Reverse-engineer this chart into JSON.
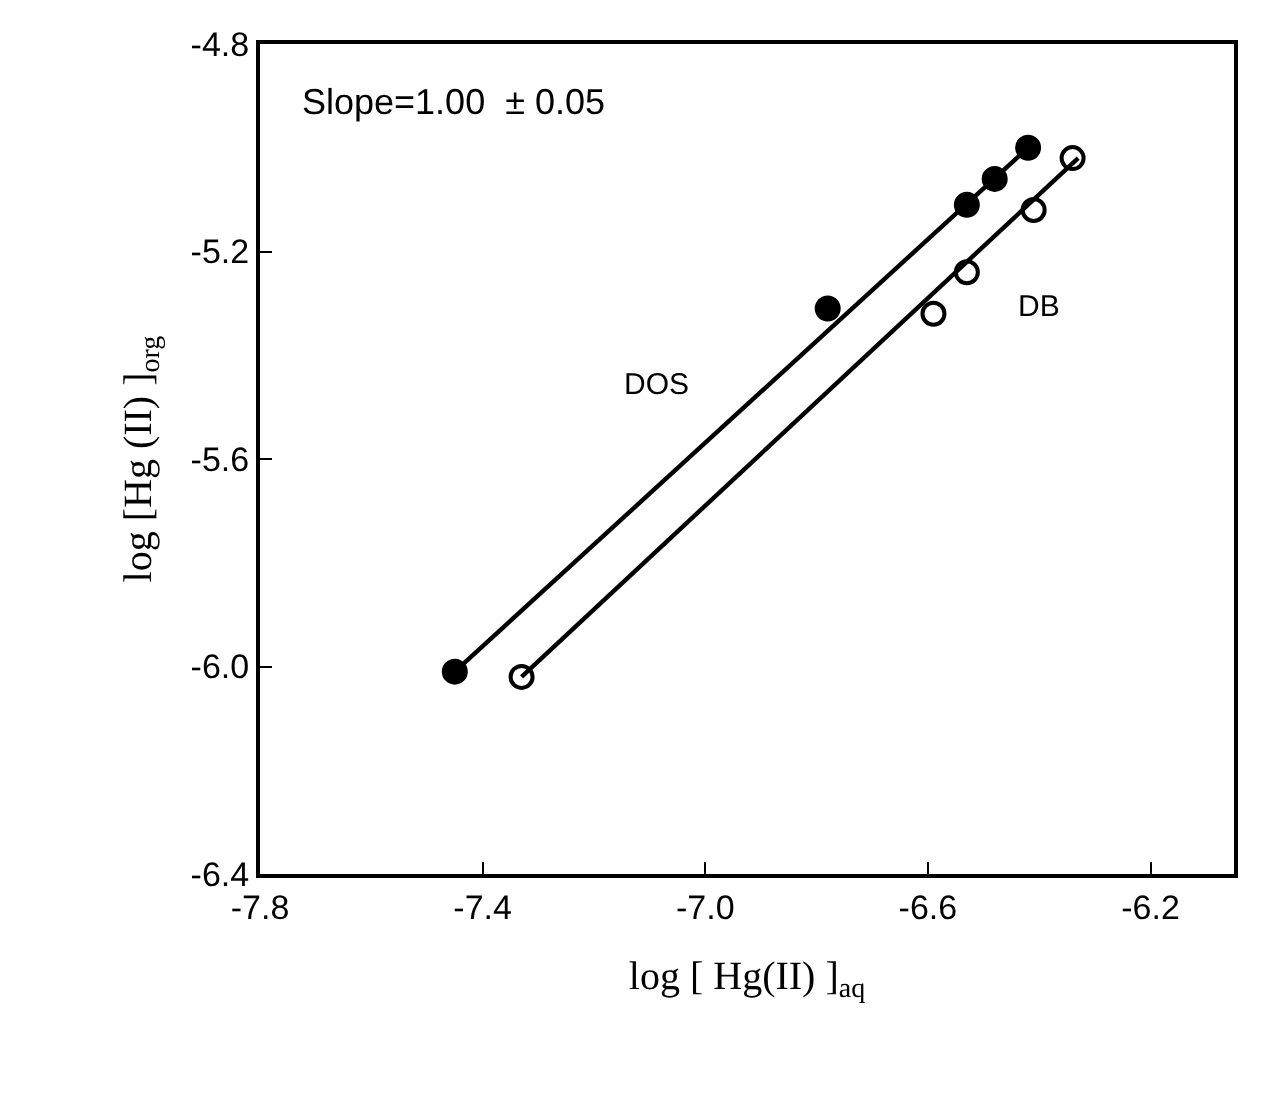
{
  "chart_data": {
    "type": "scatter",
    "xlabel": "log [ Hg(II) ]$_{aq}$",
    "ylabel": "log [Hg (II) ]$_{org}$",
    "series": [
      {
        "color": "#000000",
        "marker": "circle",
        "x": [
          -7.45,
          -6.78,
          -6.53,
          -6.48,
          -6.42
        ],
        "values": [
          -6.01,
          -5.31,
          -5.11,
          -5.06,
          -5.0
        ]
      },
      {
        "color": "#ffffff",
        "marker": "circle",
        "x": [
          -7.33,
          -6.59,
          -6.53,
          -6.41,
          -6.34
        ],
        "values": [
          -6.02,
          -5.32,
          -5.24,
          -5.12,
          -5.02
        ]
      },
      {
        "name": "DOS",
        "type": "line",
        "color": "#000000",
        "marker": "none",
        "x": [
          -7.45,
          -6.42
        ],
        "values": [
          -6.01,
          -5.0
        ]
      },
      {
        "name": "DB",
        "type": "line",
        "color": "#000000",
        "marker": "none",
        "x": [
          -7.33,
          -6.33
        ],
        "values": [
          -6.02,
          -5.02
        ]
      }
    ],
    "annotations": [
      "Slope=1.00  ± 0.05"
    ],
    "xlim": [
      -7.8,
      -6.05
    ],
    "xticks": [
      {
        "value": -7.8,
        "label": "-7.8"
      },
      {
        "value": -7.4,
        "label": "-7.4"
      },
      {
        "value": -7.0,
        "label": "-7.0"
      },
      {
        "value": -6.6,
        "label": "-6.6"
      },
      {
        "value": -6.2,
        "label": "-6.2"
      }
    ],
    "ylim": [
      -6.4,
      -4.8
    ],
    "yticks": [
      {
        "value": -6.4,
        "label": "-6.4"
      },
      {
        "value": -6.0,
        "label": "-6.0"
      },
      {
        "value": -5.6,
        "label": "-5.6"
      },
      {
        "value": -5.2,
        "label": "-5.2"
      },
      {
        "value": -4.8,
        "label": "-4.8"
      }
    ],
    "line_style": "solid"
  }
}
